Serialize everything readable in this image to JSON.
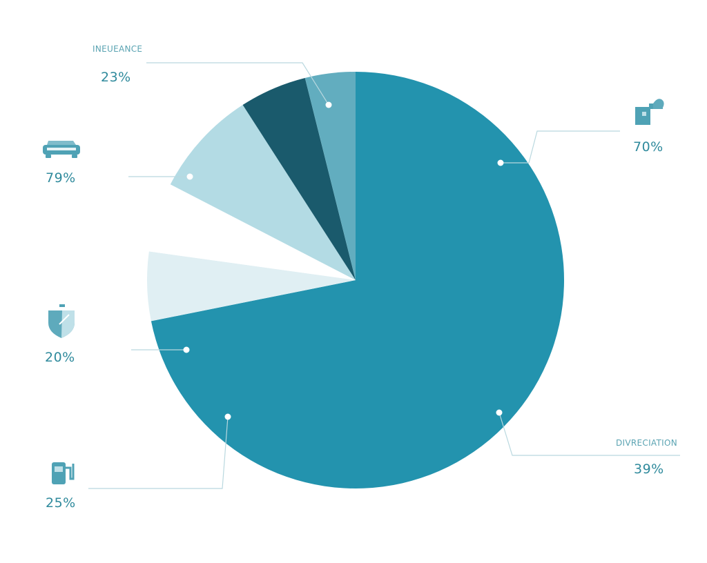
{
  "chart_data": {
    "type": "pie",
    "title": "",
    "start_angle_deg": 0,
    "direction": "clockwise",
    "slices": [
      {
        "id": "main",
        "value": 71.85,
        "color": "#2393ae"
      },
      {
        "id": "light-bottom",
        "value": 5.35,
        "color": "#e0eff3"
      },
      {
        "id": "gap",
        "value": 5.4,
        "color": "#ffffff"
      },
      {
        "id": "light-mid",
        "value": 8.3,
        "color": "#b3dbe4"
      },
      {
        "id": "dark",
        "value": 5.2,
        "color": "#1a5a6c"
      },
      {
        "id": "small-top",
        "value": 3.9,
        "color": "#62adbf"
      }
    ],
    "annotations": [
      {
        "id": "insurance",
        "category": "INEUEANCE",
        "value_text": "23%",
        "icon": "none",
        "slice": "small-top"
      },
      {
        "id": "car",
        "category": "",
        "value_text": "79%",
        "icon": "car-icon",
        "slice": "light-mid"
      },
      {
        "id": "shield",
        "category": "",
        "value_text": "20%",
        "icon": "shield-icon",
        "slice": "light-bottom"
      },
      {
        "id": "fuel",
        "category": "",
        "value_text": "25%",
        "icon": "fuel-pump-icon",
        "slice": "main"
      },
      {
        "id": "house",
        "category": "",
        "value_text": "70%",
        "icon": "house-icon",
        "slice": "main"
      },
      {
        "id": "depreciation",
        "category": "DIVRECIATION",
        "value_text": "39%",
        "icon": "none",
        "slice": "main"
      }
    ],
    "colors": {
      "text": "#2f8a9c",
      "category_text": "#5aa3b2",
      "leader": "#b9d8df",
      "icon": "#4fa2b5"
    }
  }
}
